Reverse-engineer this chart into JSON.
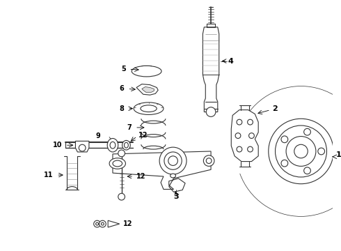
{
  "background_color": "#ffffff",
  "line_color": "#333333",
  "text_color": "#000000",
  "fig_width": 4.9,
  "fig_height": 3.6,
  "dpi": 100
}
